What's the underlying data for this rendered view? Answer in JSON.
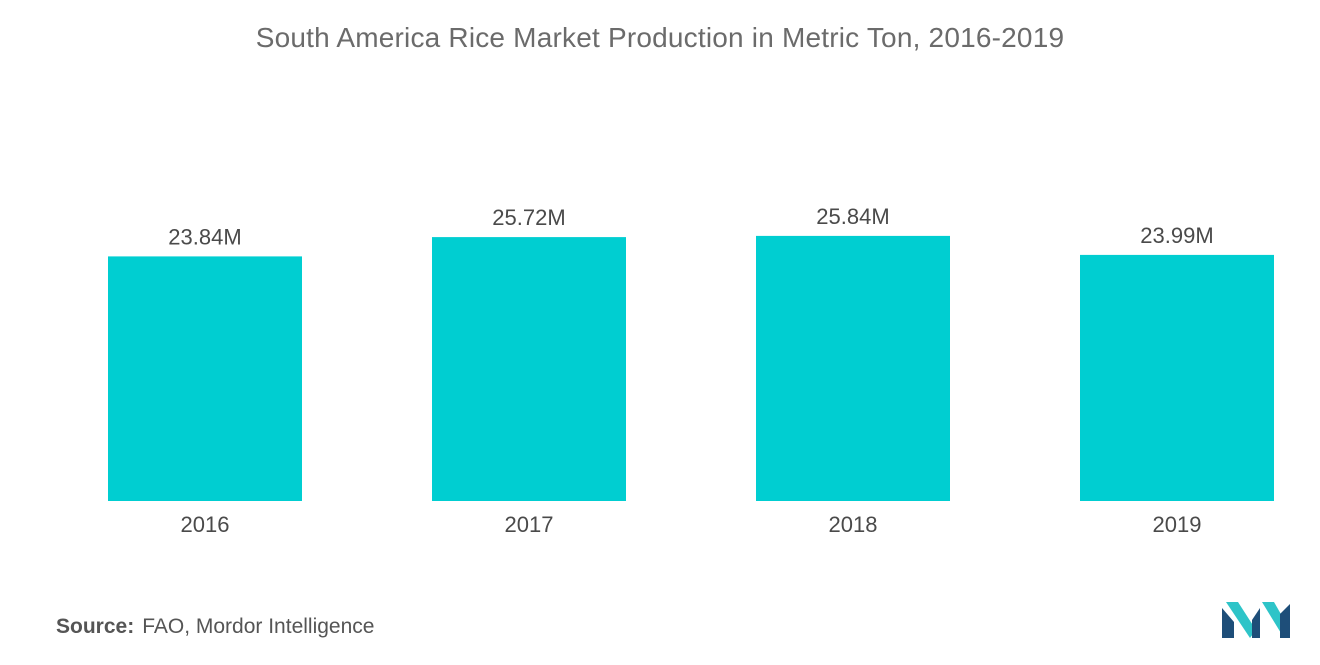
{
  "title": "South America Rice Market Production in Metric Ton, 2016-2019",
  "source": {
    "label": "Source:",
    "text": "FAO, Mordor Intelligence"
  },
  "colors": {
    "bar": "#00CED1",
    "logo_dark": "#1E4E79",
    "logo_light": "#2EC4C8"
  },
  "logo_icon": "mordor-intelligence-logo",
  "chart_data": {
    "type": "bar",
    "categories": [
      "2016",
      "2017",
      "2018",
      "2019"
    ],
    "values": [
      23.84,
      25.72,
      25.84,
      23.99
    ],
    "value_labels": [
      "23.84M",
      "25.72M",
      "25.84M",
      "23.99M"
    ],
    "unit": "M",
    "title": "South America Rice Market Production in Metric Ton, 2016-2019",
    "xlabel": "",
    "ylabel": "",
    "ylim": [
      0,
      26
    ],
    "grid": false,
    "legend": "none"
  }
}
